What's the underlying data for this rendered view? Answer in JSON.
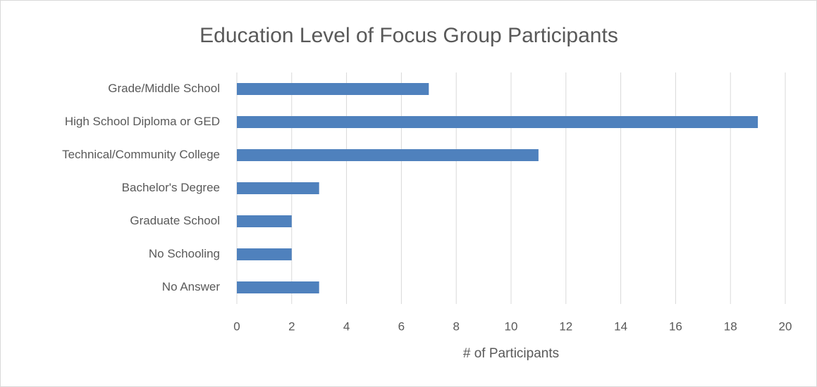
{
  "chart_data": {
    "type": "bar",
    "orientation": "horizontal",
    "title": "Education Level of Focus Group Participants",
    "x_label": "# of Participants",
    "categories": [
      "Grade/Middle School",
      "High School Diploma or GED",
      "Technical/Community College",
      "Bachelor's Degree",
      "Graduate School",
      "No Schooling",
      "No Answer"
    ],
    "values": [
      7,
      19,
      11,
      3,
      2,
      2,
      3
    ],
    "color": "#4f81bd",
    "xlim": [
      0,
      20
    ],
    "xticks": [
      0,
      2,
      4,
      6,
      8,
      10,
      12,
      14,
      16,
      18,
      20
    ],
    "grid": true
  }
}
